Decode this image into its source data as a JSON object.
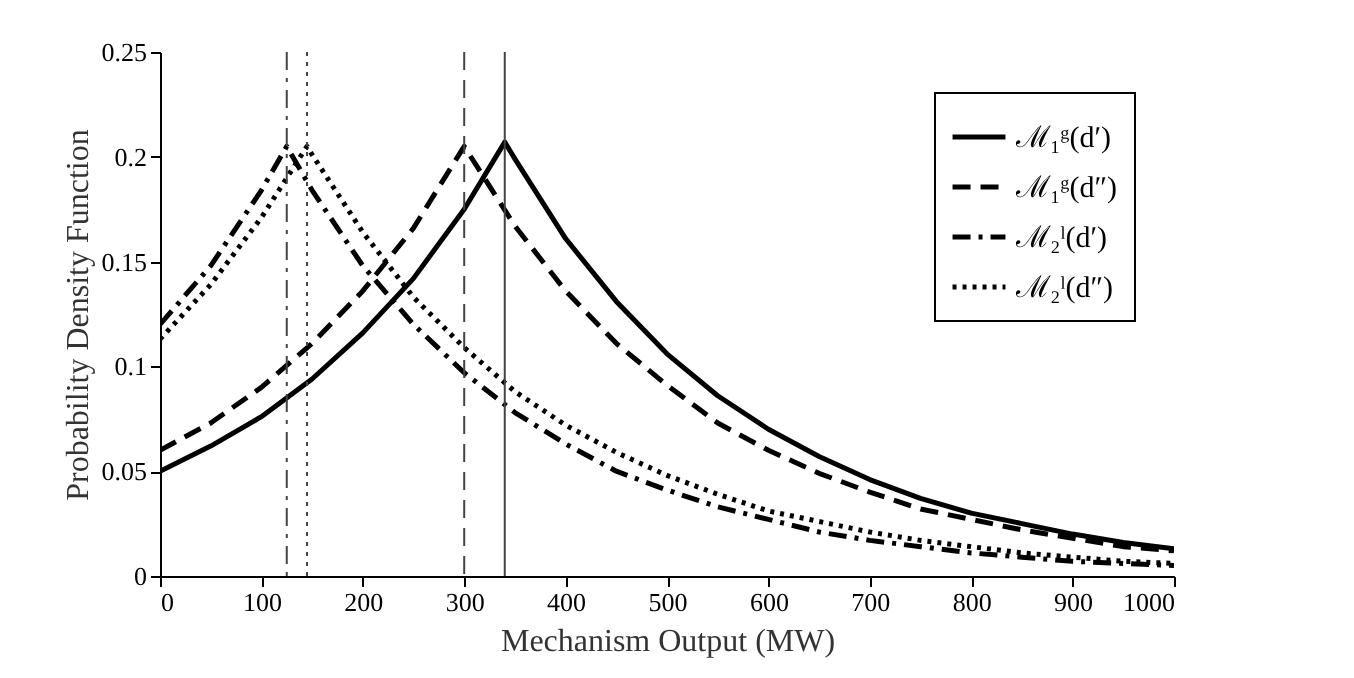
{
  "chart_data": {
    "type": "line",
    "xlabel": "Mechanism Output (MW)",
    "ylabel": "Probability Density Function",
    "xlim": [
      0,
      1000
    ],
    "xticks": [
      0,
      100,
      200,
      300,
      400,
      500,
      600,
      700,
      800,
      900,
      1000
    ],
    "ylim": [
      0,
      0.25
    ],
    "yticks": [
      0,
      0.05,
      0.1,
      0.15,
      0.2,
      0.25
    ],
    "grid": false,
    "legend": "top right",
    "marker": "none",
    "series": [
      {
        "name": "ℳ₁ᵍ(d′)",
        "color": "#000000",
        "line_style": "solid",
        "x": [
          0,
          50,
          100,
          150,
          200,
          250,
          300,
          340,
          350,
          400,
          450,
          500,
          550,
          600,
          650,
          700,
          750,
          800,
          850,
          900,
          950,
          1000
        ],
        "values": [
          0.05,
          0.062,
          0.076,
          0.094,
          0.116,
          0.142,
          0.175,
          0.207,
          0.199,
          0.161,
          0.131,
          0.106,
          0.086,
          0.07,
          0.057,
          0.046,
          0.037,
          0.03,
          0.025,
          0.02,
          0.016,
          0.013
        ]
      },
      {
        "name": "ℳ₁ᵍ(d″)",
        "color": "#000000",
        "line_style": "dashed",
        "x": [
          0,
          50,
          100,
          150,
          200,
          250,
          300,
          350,
          400,
          450,
          500,
          550,
          600,
          650,
          700,
          750,
          800,
          850,
          900,
          950,
          1000
        ],
        "values": [
          0.06,
          0.073,
          0.09,
          0.111,
          0.136,
          0.166,
          0.205,
          0.167,
          0.136,
          0.111,
          0.091,
          0.073,
          0.06,
          0.049,
          0.04,
          0.032,
          0.027,
          0.022,
          0.018,
          0.014,
          0.012
        ]
      },
      {
        "name": "ℳ₂ˡ(d′)",
        "color": "#000000",
        "line_style": "dashdot",
        "x": [
          0,
          50,
          100,
          125,
          150,
          200,
          250,
          300,
          350,
          400,
          450,
          500,
          550,
          600,
          650,
          700,
          750,
          800,
          850,
          900,
          950,
          1000
        ],
        "values": [
          0.12,
          0.148,
          0.184,
          0.205,
          0.184,
          0.148,
          0.12,
          0.097,
          0.078,
          0.063,
          0.05,
          0.041,
          0.033,
          0.027,
          0.021,
          0.017,
          0.014,
          0.011,
          0.009,
          0.007,
          0.006,
          0.005
        ]
      },
      {
        "name": "ℳ₂ˡ(d″)",
        "color": "#000000",
        "line_style": "dotted",
        "x": [
          0,
          50,
          100,
          145,
          150,
          200,
          250,
          300,
          350,
          400,
          450,
          500,
          550,
          600,
          650,
          700,
          750,
          800,
          850,
          900,
          950,
          1000
        ],
        "values": [
          0.113,
          0.139,
          0.171,
          0.205,
          0.201,
          0.164,
          0.133,
          0.109,
          0.088,
          0.072,
          0.059,
          0.048,
          0.039,
          0.031,
          0.026,
          0.021,
          0.017,
          0.014,
          0.011,
          0.009,
          0.007,
          0.006
        ]
      }
    ],
    "ref_lines": [
      {
        "axis": "x",
        "value": 125,
        "color": "#444444",
        "line_style": "dashdot"
      },
      {
        "axis": "x",
        "value": 145,
        "color": "#444444",
        "line_style": "dotted"
      },
      {
        "axis": "x",
        "value": 300,
        "color": "#444444",
        "line_style": "dashed"
      },
      {
        "axis": "x",
        "value": 340,
        "color": "#444444",
        "line_style": "solid"
      }
    ]
  }
}
